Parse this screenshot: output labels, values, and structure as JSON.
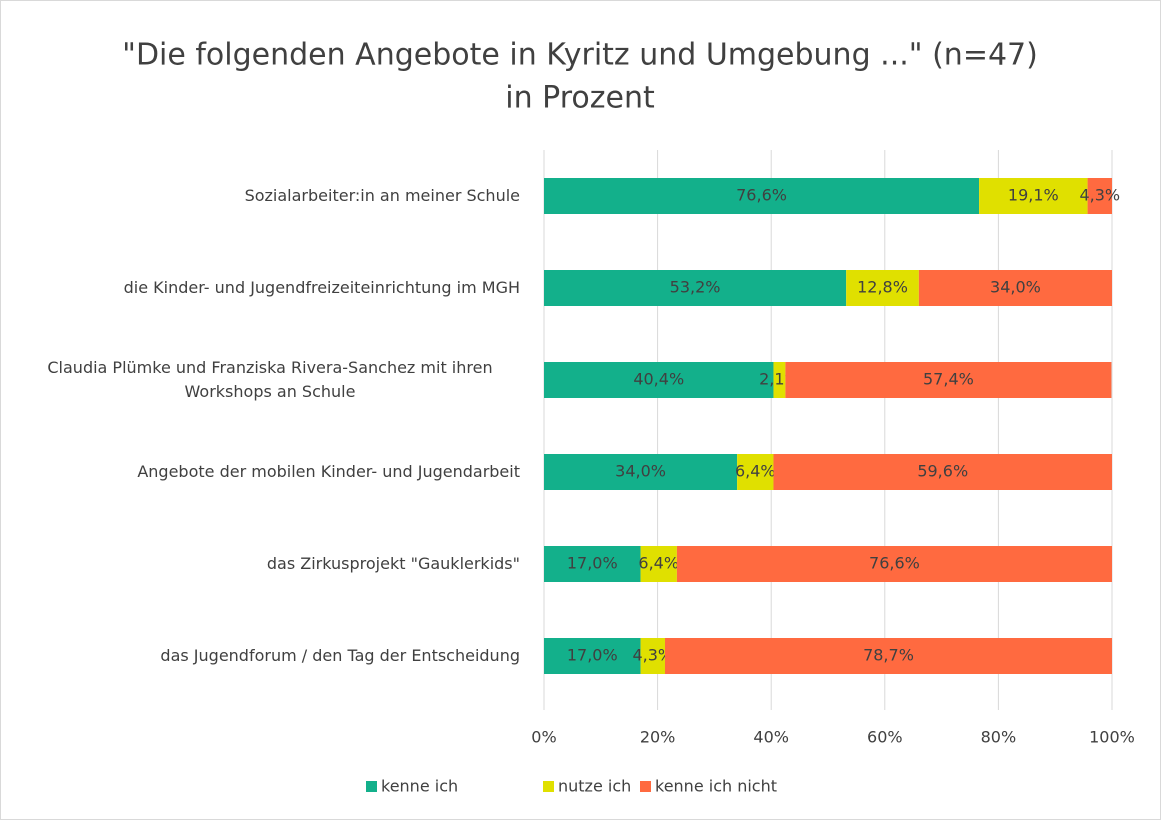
{
  "chart_data": {
    "type": "stacked-bar-horizontal",
    "title": "\"Die folgenden Angebote in Kyritz und Umgebung ...\" (n=47)",
    "subtitle": "in Prozent",
    "categories": [
      "Sozialarbeiter:in an meiner Schule",
      "die Kinder- und Jugendfreizeiteinrichtung im MGH",
      "Claudia Plümke und Franziska Rivera-Sanchez mit ihren Workshops an Schule",
      "Angebote der mobilen Kinder- und Jugendarbeit",
      "das Zirkusprojekt \"Gauklerkids\"",
      "das Jugendforum / den Tag der Entscheidung"
    ],
    "series": [
      {
        "name": "kenne ich",
        "color": "#13b08b",
        "values": [
          76.6,
          53.2,
          40.4,
          34.0,
          17.0,
          17.0
        ],
        "value_labels": [
          "76,6%",
          "53,2%",
          "40,4%",
          "34,0%",
          "17,0%",
          "17,0%"
        ]
      },
      {
        "name": "nutze ich",
        "color": "#e0e000",
        "values": [
          19.1,
          12.8,
          2.1,
          6.4,
          6.4,
          4.3
        ],
        "value_labels": [
          "19,1%",
          "12,8%",
          "2,1%",
          "6,4%",
          "6,4%",
          "4,3%"
        ]
      },
      {
        "name": "kenne ich nicht",
        "color": "#ff6a40",
        "values": [
          4.3,
          34.0,
          57.4,
          59.6,
          76.6,
          78.7
        ],
        "value_labels": [
          "4,3%",
          "34,0%",
          "57,4%",
          "59,6%",
          "76,6%",
          "78,7%"
        ]
      }
    ],
    "xlim": [
      0,
      100
    ],
    "xticks": [
      {
        "value": 0,
        "label": "0%"
      },
      {
        "value": 20,
        "label": "20%"
      },
      {
        "value": 40,
        "label": "40%"
      },
      {
        "value": 60,
        "label": "60%"
      },
      {
        "value": 80,
        "label": "80%"
      },
      {
        "value": 100,
        "label": "100%"
      }
    ],
    "grid": true,
    "legend": "bottom"
  }
}
